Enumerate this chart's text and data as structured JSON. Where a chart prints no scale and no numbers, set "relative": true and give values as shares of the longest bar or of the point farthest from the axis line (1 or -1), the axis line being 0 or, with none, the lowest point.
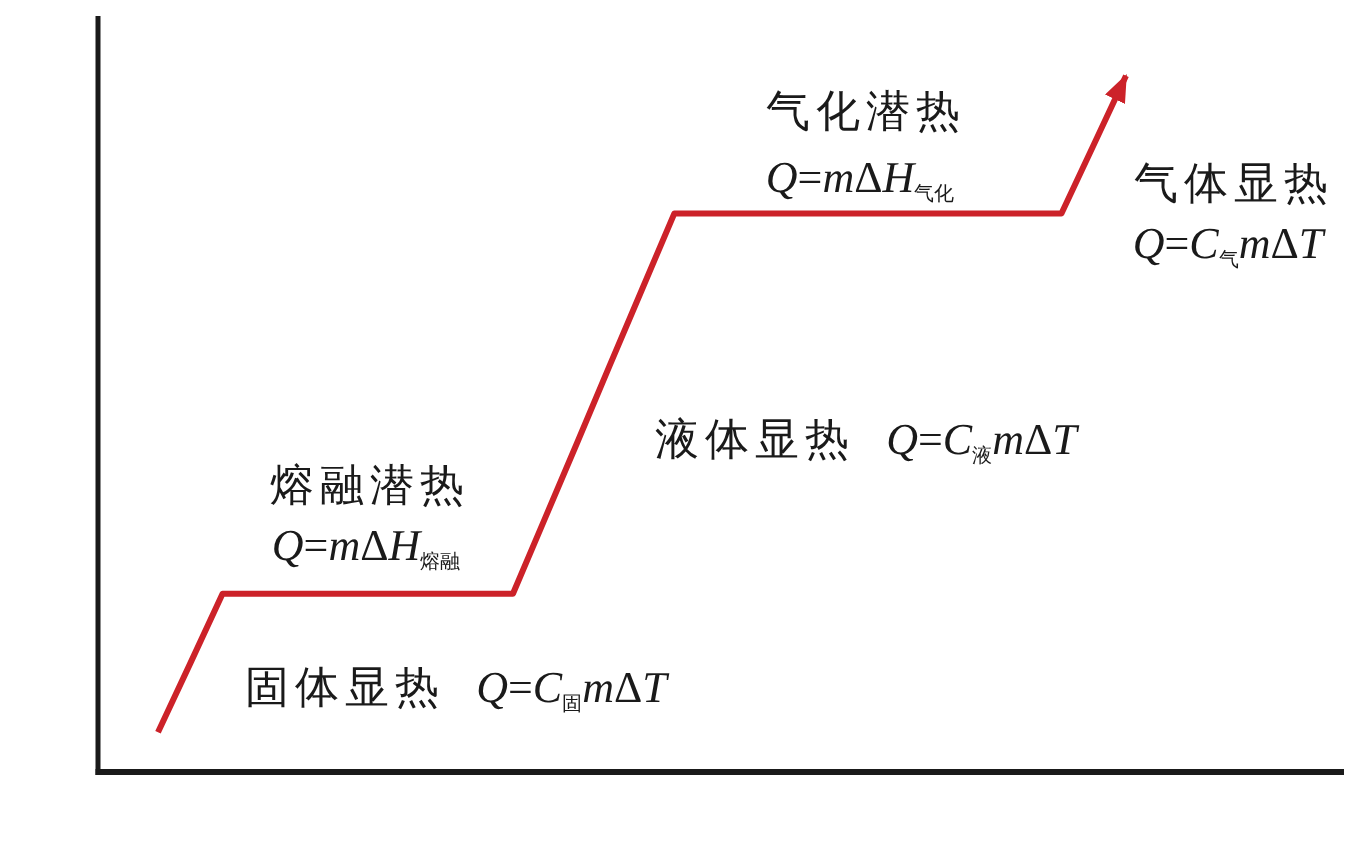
{
  "chart_data": {
    "type": "line",
    "relative": true,
    "categories": [
      null,
      null,
      null,
      null,
      null,
      null,
      null,
      null,
      null,
      null,
      null,
      null,
      null,
      null,
      null,
      null,
      null,
      null,
      null,
      null,
      null,
      null,
      null,
      null,
      null,
      null,
      null,
      null,
      null,
      null,
      null
    ],
    "series": [
      {
        "color": "#cc2229",
        "values": [
          0.057,
          0.156,
          0.256,
          0.256,
          0.256,
          0.256,
          0.256,
          0.256,
          0.256,
          0.256,
          0.256,
          0.256,
          0.365,
          0.474,
          0.584,
          0.693,
          0.802,
          0.802,
          0.802,
          0.802,
          0.802,
          0.802,
          0.802,
          0.802,
          0.802,
          0.802,
          0.802,
          0.802,
          0.802,
          0.901,
          1
        ]
      }
    ],
    "annotations": [
      "熔融潜热",
      "Q=mΔH$_{熔融}$",
      "固体显热 Q=C$_{固}$mΔT",
      "液体显热 Q=C$_{液}$mΔT",
      "气化潜热",
      "Q=mΔH$_{气化}$",
      "气体显热",
      "Q=C$_{气}$mΔT"
    ]
  }
}
